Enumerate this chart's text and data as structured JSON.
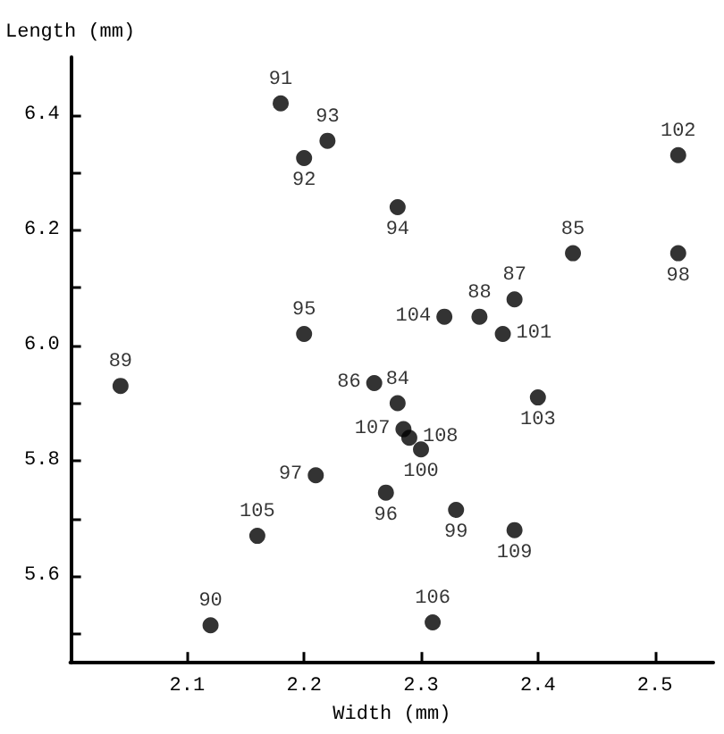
{
  "chart_data": {
    "type": "scatter",
    "xlabel": "Width (mm)",
    "ylabel": "Length (mm)",
    "marker": "circle",
    "grid": false,
    "xlim": [
      2.0,
      2.55
    ],
    "xticks": [
      2.1,
      2.2,
      2.3,
      2.4,
      2.5
    ],
    "ylim": [
      5.45,
      6.5
    ],
    "yticks": [
      {
        "value": 5.5,
        "label": null
      },
      5.6,
      {
        "value": 5.7,
        "label": null
      },
      5.8,
      {
        "value": 5.9,
        "label": null
      },
      {
        "value": 6.0,
        "label": "6.0"
      },
      {
        "value": 6.1,
        "label": null
      },
      6.2,
      {
        "value": 6.3,
        "label": null
      },
      6.4
    ],
    "series": [
      {
        "color": "#000000",
        "x": [
          2.18,
          2.22,
          2.2,
          2.28,
          2.52,
          2.43,
          2.52,
          2.32,
          2.35,
          2.38,
          2.37,
          2.2,
          2.043,
          2.26,
          2.28,
          2.285,
          2.29,
          2.3,
          2.4,
          2.21,
          2.27,
          2.33,
          2.38,
          2.16,
          2.12,
          2.31
        ],
        "values": [
          6.42,
          6.355,
          6.325,
          6.24,
          6.33,
          6.16,
          6.16,
          6.05,
          6.05,
          6.08,
          6.02,
          6.02,
          5.93,
          5.935,
          5.9,
          5.855,
          5.84,
          5.82,
          5.91,
          5.775,
          5.745,
          5.715,
          5.68,
          5.67,
          5.515,
          5.52
        ]
      }
    ],
    "annotations": [
      {
        "text": "91",
        "x": 2.18,
        "y": 6.42
      },
      {
        "text": "93",
        "x": 2.22,
        "y": 6.355
      },
      {
        "text": "92",
        "x": 2.2,
        "y": 6.325
      },
      {
        "text": "94",
        "x": 2.28,
        "y": 6.24
      },
      {
        "text": "102",
        "x": 2.52,
        "y": 6.33
      },
      {
        "text": "85",
        "x": 2.43,
        "y": 6.16
      },
      {
        "text": "98",
        "x": 2.52,
        "y": 6.16
      },
      {
        "text": "104",
        "x": 2.32,
        "y": 6.05
      },
      {
        "text": "88",
        "x": 2.35,
        "y": 6.05
      },
      {
        "text": "87",
        "x": 2.38,
        "y": 6.08
      },
      {
        "text": "101",
        "x": 2.37,
        "y": 6.02
      },
      {
        "text": "95",
        "x": 2.2,
        "y": 6.02
      },
      {
        "text": "89",
        "x": 2.043,
        "y": 5.93
      },
      {
        "text": "86",
        "x": 2.26,
        "y": 5.935
      },
      {
        "text": "84",
        "x": 2.28,
        "y": 5.9
      },
      {
        "text": "107",
        "x": 2.285,
        "y": 5.855
      },
      {
        "text": "108",
        "x": 2.29,
        "y": 5.84
      },
      {
        "text": "100",
        "x": 2.3,
        "y": 5.82
      },
      {
        "text": "103",
        "x": 2.4,
        "y": 5.91
      },
      {
        "text": "97",
        "x": 2.21,
        "y": 5.775
      },
      {
        "text": "96",
        "x": 2.27,
        "y": 5.745
      },
      {
        "text": "99",
        "x": 2.33,
        "y": 5.715
      },
      {
        "text": "109",
        "x": 2.38,
        "y": 5.68
      },
      {
        "text": "105",
        "x": 2.16,
        "y": 5.67
      },
      {
        "text": "90",
        "x": 2.12,
        "y": 5.515
      },
      {
        "text": "106",
        "x": 2.31,
        "y": 5.52
      }
    ]
  }
}
